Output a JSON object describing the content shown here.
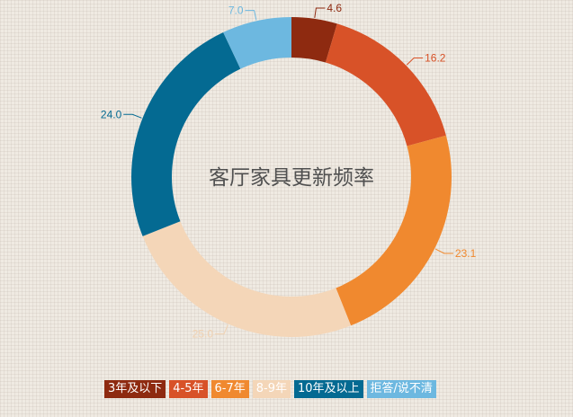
{
  "chart_data": {
    "type": "pie",
    "title": "客厅家具更新频率",
    "categories": [
      "3年及以下",
      "4-5年",
      "6-7年",
      "8-9年",
      "10年及以上",
      "拒答/说不清"
    ],
    "values": [
      4.6,
      16.2,
      23.1,
      25.0,
      24.0,
      7.0
    ],
    "value_labels": [
      "4.6",
      "16.2",
      "23.1",
      "25.0",
      "24.0",
      "7.0"
    ],
    "colors": [
      "#8e2a10",
      "#d85228",
      "#f0892f",
      "#f4d6b8",
      "#046a92",
      "#6db8e0"
    ],
    "label_colors": [
      "#8e2a10",
      "#d85228",
      "#f0892f",
      "#f1d2b2",
      "#046a92",
      "#6db8e0"
    ],
    "donut": true,
    "legend_position": "bottom"
  },
  "background_color": "#efeae2"
}
